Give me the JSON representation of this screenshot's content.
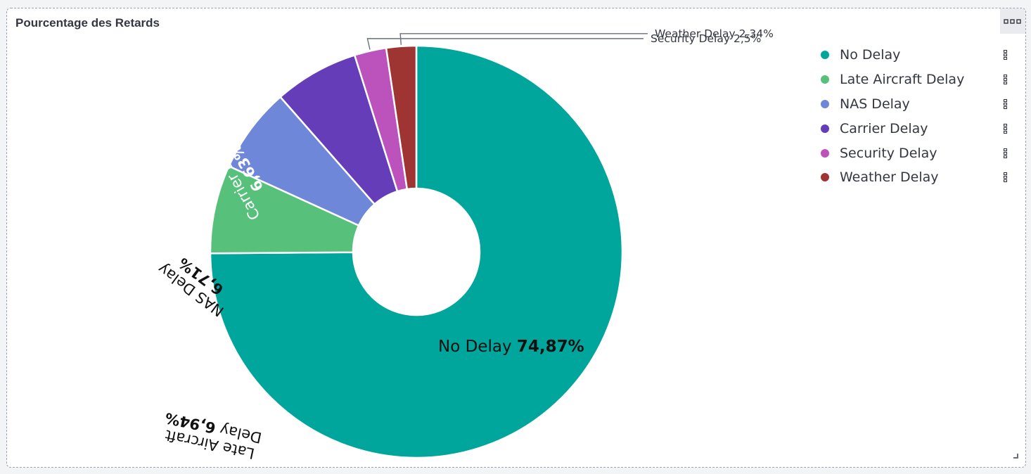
{
  "panel": {
    "title": "Pourcentage des Retards",
    "options_icon": "ellipsis-icon",
    "resize_icon": "resize-handle-icon"
  },
  "chart_data": {
    "type": "pie",
    "donut": true,
    "title": "Pourcentage des Retards",
    "legend_position": "right",
    "categories": [
      "No Delay",
      "Late Aircraft Delay",
      "NAS Delay",
      "Carrier Delay",
      "Security Delay",
      "Weather Delay"
    ],
    "values": [
      74.87,
      6.94,
      6.71,
      6.63,
      2.5,
      2.34
    ],
    "value_labels": [
      "74,87%",
      "6,94%",
      "6,71%",
      "6,63%",
      "2,5%",
      "2,34%"
    ],
    "colors": [
      "#00a69b",
      "#57c17b",
      "#6f87d8",
      "#663db8",
      "#bc52bc",
      "#9e3533"
    ]
  }
}
